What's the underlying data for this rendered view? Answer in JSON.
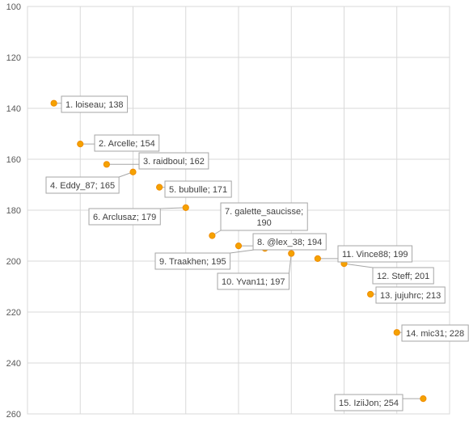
{
  "chart_data": {
    "type": "scatter",
    "title": "",
    "xlabel": "",
    "ylabel": "",
    "y_reversed": true,
    "ylim": [
      100,
      260
    ],
    "y_ticks": [
      100,
      120,
      140,
      160,
      180,
      200,
      220,
      240,
      260
    ],
    "xlim": [
      0,
      16
    ],
    "grid": true,
    "colors": {
      "marker": "#f5a200",
      "marker_edge": "#f08c00",
      "grid": "#d9d9d9",
      "label_border": "#a6a6a6"
    },
    "points": [
      {
        "x": 1,
        "y": 138,
        "label": "1. loiseau; 138"
      },
      {
        "x": 2,
        "y": 154,
        "label": "2. Arcelle; 154"
      },
      {
        "x": 3,
        "y": 162,
        "label": "3. raidboul; 162"
      },
      {
        "x": 4,
        "y": 165,
        "label": "4. Eddy_87; 165"
      },
      {
        "x": 5,
        "y": 171,
        "label": "5. bubulle; 171"
      },
      {
        "x": 6,
        "y": 179,
        "label": "6. Arclusaz; 179"
      },
      {
        "x": 7,
        "y": 190,
        "label": "7. galette_saucisse;\n190"
      },
      {
        "x": 8,
        "y": 194,
        "label": "8. @lex_38; 194"
      },
      {
        "x": 9,
        "y": 195,
        "label": "9. Traakhen; 195"
      },
      {
        "x": 10,
        "y": 197,
        "label": "10. Yvan11; 197"
      },
      {
        "x": 11,
        "y": 199,
        "label": "11. Vince88; 199"
      },
      {
        "x": 12,
        "y": 201,
        "label": "12. Steff; 201"
      },
      {
        "x": 13,
        "y": 213,
        "label": "13. jujuhrc; 213"
      },
      {
        "x": 14,
        "y": 228,
        "label": "14. mic31; 228"
      },
      {
        "x": 15,
        "y": 254,
        "label": "15. IziiJon; 254"
      }
    ]
  }
}
